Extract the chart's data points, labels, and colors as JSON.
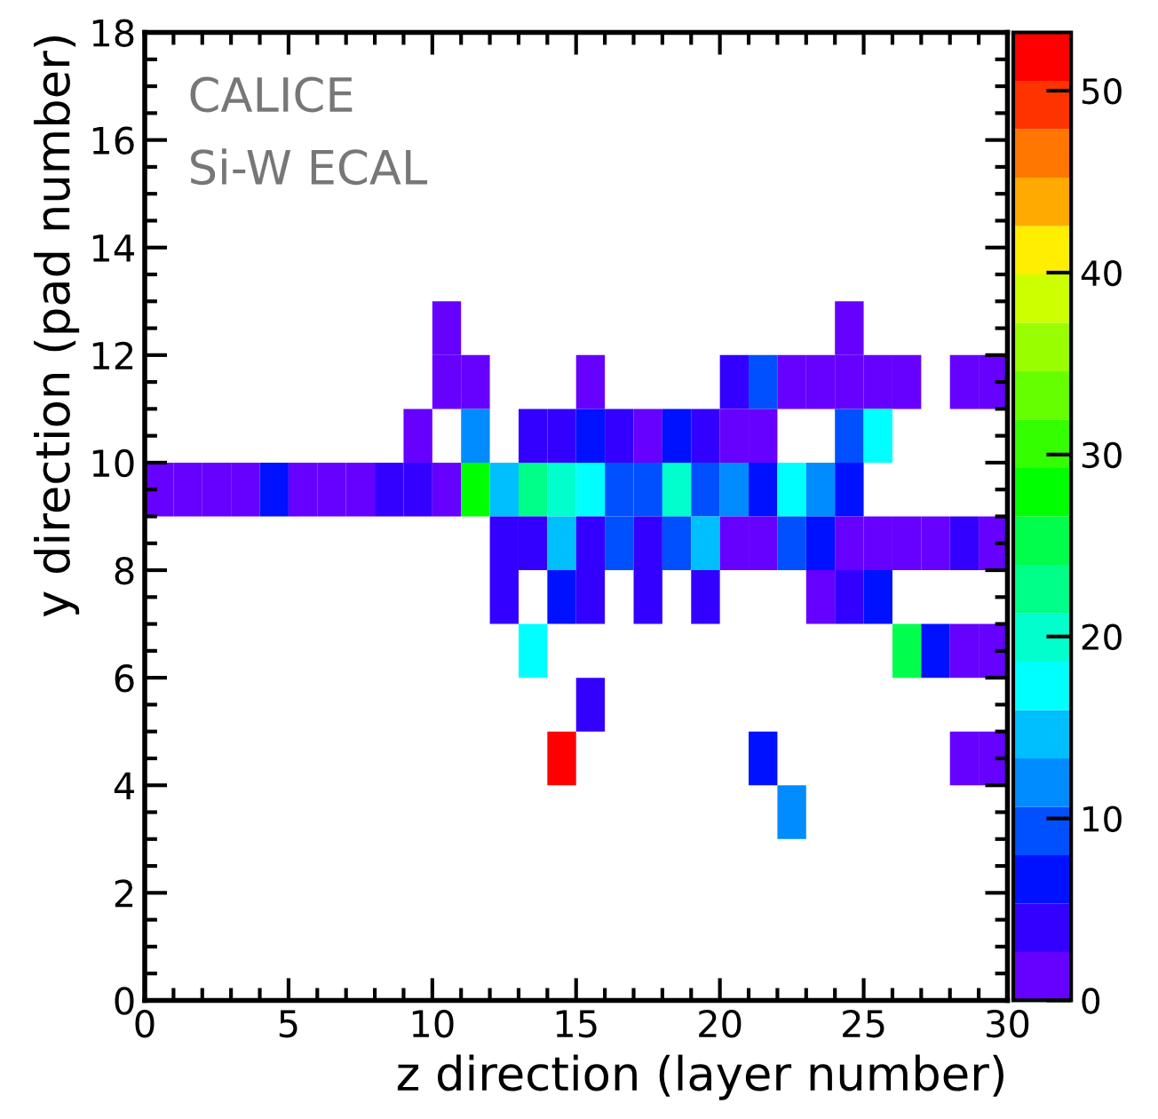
{
  "chart_data": {
    "type": "heatmap",
    "xlabel": "z direction (layer number)",
    "ylabel": "y direction (pad number)",
    "annotations": [
      "CALICE",
      "Si-W ECAL"
    ],
    "xlim": [
      0,
      30
    ],
    "ylim": [
      0,
      18
    ],
    "xticks": [
      0,
      {
        "value": 1,
        "label": null
      },
      {
        "value": 2,
        "label": null
      },
      {
        "value": 3,
        "label": null
      },
      {
        "value": 4,
        "label": null
      },
      5,
      {
        "value": 6,
        "label": null
      },
      {
        "value": 7,
        "label": null
      },
      {
        "value": 8,
        "label": null
      },
      {
        "value": 9,
        "label": null
      },
      10,
      {
        "value": 11,
        "label": null
      },
      {
        "value": 12,
        "label": null
      },
      {
        "value": 13,
        "label": null
      },
      {
        "value": 14,
        "label": null
      },
      15,
      {
        "value": 16,
        "label": null
      },
      {
        "value": 17,
        "label": null
      },
      {
        "value": 18,
        "label": null
      },
      {
        "value": 19,
        "label": null
      },
      20,
      {
        "value": 21,
        "label": null
      },
      {
        "value": 22,
        "label": null
      },
      {
        "value": 23,
        "label": null
      },
      {
        "value": 24,
        "label": null
      },
      25,
      {
        "value": 26,
        "label": null
      },
      {
        "value": 27,
        "label": null
      },
      {
        "value": 28,
        "label": null
      },
      {
        "value": 29,
        "label": null
      },
      30
    ],
    "yticks": [
      0,
      {
        "value": 0.5,
        "label": null
      },
      {
        "value": 1,
        "label": null
      },
      {
        "value": 1.5,
        "label": null
      },
      2,
      {
        "value": 2.5,
        "label": null
      },
      {
        "value": 3,
        "label": null
      },
      {
        "value": 3.5,
        "label": null
      },
      4,
      {
        "value": 4.5,
        "label": null
      },
      {
        "value": 5,
        "label": null
      },
      {
        "value": 5.5,
        "label": null
      },
      6,
      {
        "value": 6.5,
        "label": null
      },
      {
        "value": 7,
        "label": null
      },
      {
        "value": 7.5,
        "label": null
      },
      8,
      {
        "value": 8.5,
        "label": null
      },
      {
        "value": 9,
        "label": null
      },
      {
        "value": 9.5,
        "label": null
      },
      10,
      {
        "value": 10.5,
        "label": null
      },
      {
        "value": 11,
        "label": null
      },
      {
        "value": 11.5,
        "label": null
      },
      12,
      {
        "value": 12.5,
        "label": null
      },
      {
        "value": 13,
        "label": null
      },
      {
        "value": 13.5,
        "label": null
      },
      14,
      {
        "value": 14.5,
        "label": null
      },
      {
        "value": 15,
        "label": null
      },
      {
        "value": 15.5,
        "label": null
      },
      16,
      {
        "value": 16.5,
        "label": null
      },
      {
        "value": 17,
        "label": null
      },
      {
        "value": 17.5,
        "label": null
      },
      18
    ],
    "clim": [
      0,
      53.2
    ],
    "cticks": [
      0,
      10,
      20,
      30,
      40,
      50
    ],
    "colors": [
      "#6600ff",
      "#3300ff",
      "#0011ff",
      "#0050ff",
      "#008cff",
      "#00bfff",
      "#00ffff",
      "#00ffcc",
      "#00ff88",
      "#00ff4c",
      "#00ff00",
      "#33ff00",
      "#66ff00",
      "#99ff00",
      "#ccff00",
      "#ffee00",
      "#ffaa00",
      "#ff7700",
      "#ff3300",
      "#ff0000"
    ],
    "x": [
      0.5,
      1.5,
      2.5,
      3.5,
      4.5,
      5.5,
      6.5,
      7.5,
      8.5,
      9.5,
      10.5,
      11.5,
      12.5,
      13.5,
      14.5,
      15.5,
      16.5,
      17.5,
      18.5,
      19.5,
      20.5,
      21.5,
      22.5,
      23.5,
      24.5,
      25.5,
      26.5,
      27.5,
      28.5,
      29.5
    ],
    "y": [
      12.5,
      11.5,
      10.5,
      9.5,
      8.5,
      7.5,
      6.5,
      5.5,
      4.5,
      3.5
    ],
    "cells": [
      [
        null,
        null,
        null,
        null,
        null,
        null,
        null,
        null,
        null,
        null,
        1,
        null,
        null,
        null,
        null,
        null,
        null,
        null,
        null,
        null,
        null,
        null,
        null,
        null,
        1,
        null,
        null,
        null,
        null,
        null
      ],
      [
        null,
        null,
        null,
        null,
        null,
        null,
        null,
        null,
        null,
        null,
        1,
        1,
        null,
        null,
        null,
        1,
        null,
        null,
        null,
        null,
        4,
        9,
        1,
        1,
        1,
        1,
        1,
        null,
        1,
        1
      ],
      [
        null,
        null,
        null,
        null,
        null,
        null,
        null,
        null,
        null,
        1,
        null,
        12,
        null,
        4,
        4,
        7,
        4,
        1,
        7,
        4,
        1,
        1,
        null,
        null,
        9,
        17,
        null,
        null,
        null,
        null
      ],
      [
        1,
        1,
        1,
        1,
        7,
        1,
        1,
        1,
        4,
        4,
        1,
        28,
        15,
        23,
        20,
        17,
        9,
        9,
        20,
        9,
        12,
        7,
        17,
        12,
        7,
        null,
        null,
        null,
        null,
        null
      ],
      [
        null,
        null,
        null,
        null,
        null,
        null,
        null,
        null,
        null,
        null,
        null,
        null,
        4,
        4,
        15,
        4,
        9,
        4,
        9,
        15,
        1,
        1,
        9,
        7,
        1,
        1,
        1,
        1,
        4,
        1
      ],
      [
        null,
        null,
        null,
        null,
        null,
        null,
        null,
        null,
        null,
        null,
        null,
        null,
        4,
        null,
        7,
        4,
        null,
        4,
        null,
        4,
        null,
        null,
        null,
        1,
        4,
        7,
        null,
        null,
        null,
        null
      ],
      [
        null,
        null,
        null,
        null,
        null,
        null,
        null,
        null,
        null,
        null,
        null,
        null,
        null,
        17,
        null,
        null,
        null,
        null,
        null,
        null,
        null,
        null,
        null,
        null,
        null,
        null,
        25,
        7,
        1,
        1
      ],
      [
        null,
        null,
        null,
        null,
        null,
        null,
        null,
        null,
        null,
        null,
        null,
        null,
        null,
        null,
        null,
        4,
        null,
        null,
        null,
        null,
        null,
        null,
        null,
        null,
        null,
        null,
        null,
        null,
        null,
        null
      ],
      [
        null,
        null,
        null,
        null,
        null,
        null,
        null,
        null,
        null,
        null,
        null,
        null,
        null,
        null,
        52,
        null,
        null,
        null,
        null,
        null,
        null,
        7,
        null,
        null,
        null,
        null,
        null,
        null,
        1,
        1
      ],
      [
        null,
        null,
        null,
        null,
        null,
        null,
        null,
        null,
        null,
        null,
        null,
        null,
        null,
        null,
        null,
        null,
        null,
        null,
        null,
        null,
        null,
        null,
        12,
        null,
        null,
        null,
        null,
        null,
        null,
        null
      ]
    ]
  }
}
